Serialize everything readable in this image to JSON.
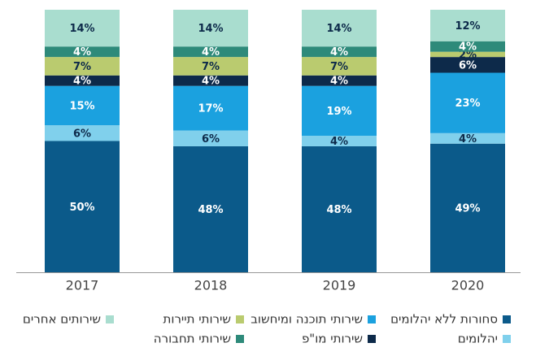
{
  "chart_data": {
    "type": "bar",
    "stacked": true,
    "categories": [
      "2017",
      "2018",
      "2019",
      "2020"
    ],
    "ylim": [
      0,
      100
    ],
    "series": [
      {
        "name": "סחורות ללא יהלומים",
        "color": "#0b5a8a",
        "values": [
          50,
          48,
          48,
          49
        ],
        "value_labels": [
          "50%",
          "48%",
          "48%",
          "49%"
        ]
      },
      {
        "name": "יהלומים",
        "color": "#80d0ec",
        "values": [
          6,
          6,
          4,
          4
        ],
        "value_labels": [
          "6%",
          "6%",
          "4%",
          "4%"
        ]
      },
      {
        "name": "שירותי תוכנה ומיחשוב",
        "color": "#1ba1df",
        "values": [
          15,
          17,
          19,
          23
        ],
        "value_labels": [
          "15%",
          "17%",
          "19%",
          "23%"
        ]
      },
      {
        "name": "שירותי מו\"פ",
        "color": "#0d2a4a",
        "values": [
          4,
          4,
          4,
          6
        ],
        "value_labels": [
          "4%",
          "4%",
          "4%",
          "6%"
        ]
      },
      {
        "name": "שירותי תיירות",
        "color": "#bacb6f",
        "values": [
          7,
          7,
          7,
          2
        ],
        "value_labels": [
          "7%",
          "7%",
          "7%",
          "2%"
        ]
      },
      {
        "name": "שירותי תחבורה",
        "color": "#2e8a7a",
        "values": [
          4,
          4,
          4,
          4
        ],
        "value_labels": [
          "4%",
          "4%",
          "4%",
          "4%"
        ]
      },
      {
        "name": "שירותים אחרים",
        "color": "#a9ddcf",
        "values": [
          14,
          14,
          14,
          12
        ],
        "value_labels": [
          "14%",
          "14%",
          "14%",
          "12%"
        ]
      }
    ]
  }
}
